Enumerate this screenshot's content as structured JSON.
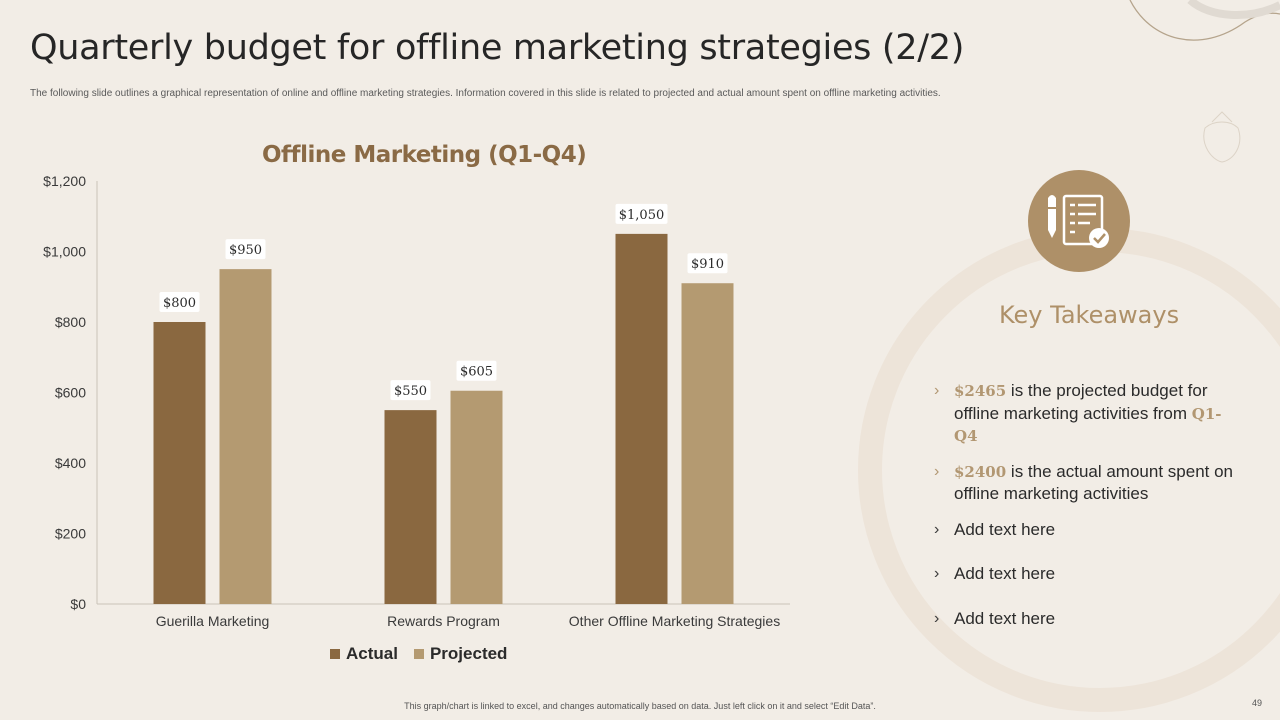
{
  "slide": {
    "title": "Quarterly budget for offline marketing strategies (2/2)",
    "subtitle": "The following slide outlines a graphical representation of online and offline marketing strategies. Information covered in this slide is related to projected and actual amount spent on offline marketing activities.",
    "footer_note": "This graph/chart is linked to excel, and changes automatically based on data. Just left click on it and select “Edit Data”.",
    "page_number": "49"
  },
  "chart_data": {
    "type": "bar",
    "title": "Offline Marketing (Q1-Q4)",
    "categories": [
      "Guerilla Marketing",
      "Rewards Program",
      "Other Offline Marketing Strategies"
    ],
    "series": [
      {
        "name": "Actual",
        "values": [
          800,
          550,
          1050
        ],
        "labels": [
          "$800",
          "$550",
          "$1,050"
        ],
        "color": "#8a6840"
      },
      {
        "name": "Projected",
        "values": [
          950,
          605,
          910
        ],
        "labels": [
          "$950",
          "$605",
          "$910"
        ],
        "color": "#b49a71"
      }
    ],
    "ylim": [
      0,
      1200
    ],
    "yticks": [
      0,
      200,
      400,
      600,
      800,
      1000,
      1200
    ],
    "ytick_labels": [
      "$0",
      "$200",
      "$400",
      "$600",
      "$800",
      "$1,000",
      "$1,200"
    ],
    "legend_position": "bottom",
    "grid": false
  },
  "takeaways": {
    "icon": "checklist-pen-icon",
    "heading": "Key Takeaways",
    "item1": {
      "highlight": "$2465",
      "text_a": " is the projected budget for offline marketing activities from ",
      "highlight2": "Q1-Q4"
    },
    "item2": {
      "highlight": "$2400",
      "text_a": " is the actual amount spent on offline marketing activities"
    },
    "item3": "Add text here",
    "item4": "Add text here",
    "item5": "Add text here"
  },
  "colors": {
    "accent": "#ae9068",
    "dark_bar": "#8a6840",
    "light_bar": "#b49a71",
    "background": "#f2ede6"
  }
}
